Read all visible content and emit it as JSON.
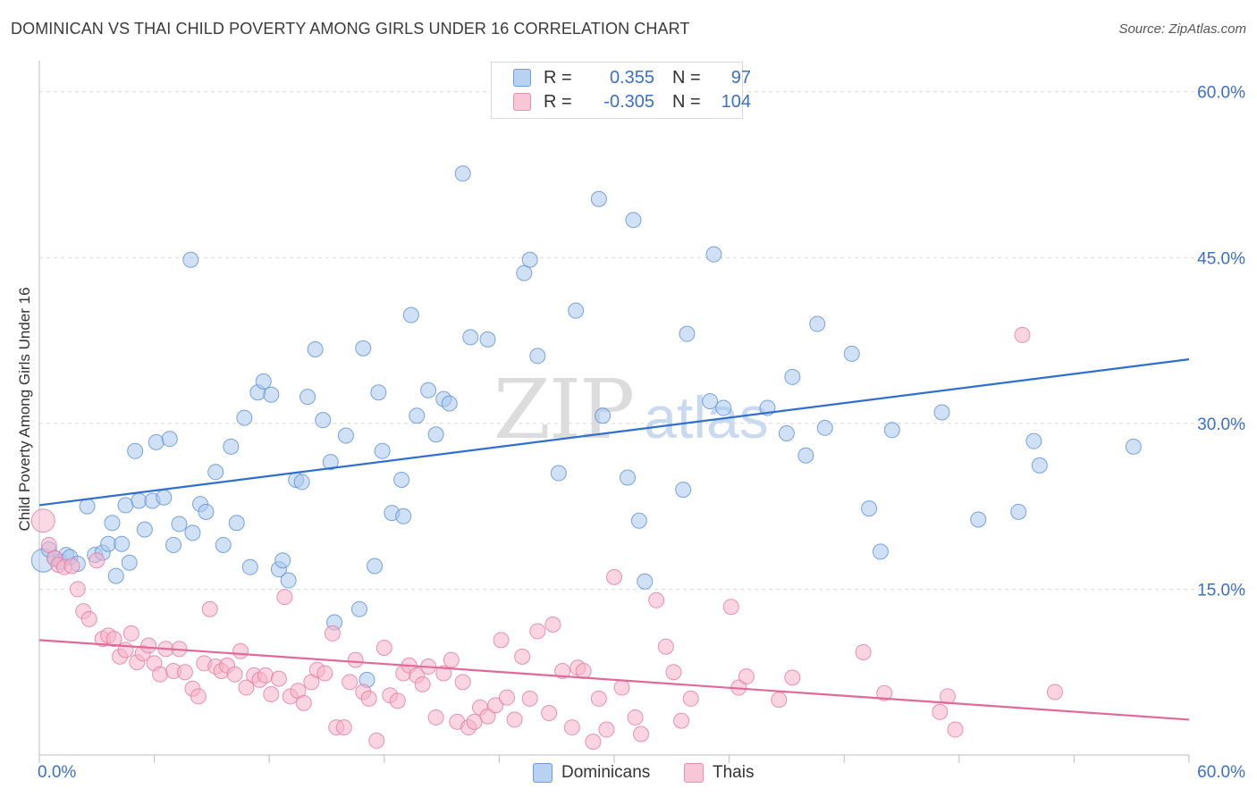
{
  "title": "DOMINICAN VS THAI CHILD POVERTY AMONG GIRLS UNDER 16 CORRELATION CHART",
  "source": "Source: ZipAtlas.com",
  "watermark": {
    "zip": "ZIP",
    "atlas": "atlas"
  },
  "colors": {
    "dominicans_fill": "#a9c8ee",
    "dominicans_stroke": "#5b8fd6",
    "dominicans_line": "#2f6fcf",
    "thais_fill": "#f5b3c9",
    "thais_stroke": "#e27aa0",
    "thais_line": "#e0699a",
    "tick_label": "#3b6fc9",
    "grid": "#d9d9d9"
  },
  "legend": {
    "rows": [
      {
        "r_label": "R =",
        "r_value": "0.355",
        "n_label": "N =",
        "n_value": "97"
      },
      {
        "r_label": "R =",
        "r_value": "-0.305",
        "n_label": "N =",
        "n_value": "104"
      }
    ]
  },
  "chart_data": {
    "type": "scatter",
    "title": "DOMINICAN VS THAI CHILD POVERTY AMONG GIRLS UNDER 16 CORRELATION CHART",
    "xlabel": "",
    "ylabel": "Child Poverty Among Girls Under 16",
    "xlim": [
      0,
      60
    ],
    "ylim": [
      0,
      62
    ],
    "x_tick_labels": [
      "0.0%",
      "60.0%"
    ],
    "y_ticks": [
      15,
      30,
      45,
      60
    ],
    "y_tick_labels": [
      "15.0%",
      "30.0%",
      "45.0%",
      "60.0%"
    ],
    "grid": true,
    "legend_placement": "top-center",
    "series": [
      {
        "name": "Dominicans",
        "r": 0.355,
        "n": 97,
        "trend": {
          "x": [
            0,
            60
          ],
          "y": [
            22.6,
            35.8
          ]
        },
        "points": [
          [
            0.2,
            17.6
          ],
          [
            0.5,
            18.6
          ],
          [
            0.8,
            17.8
          ],
          [
            1.1,
            17.5
          ],
          [
            1.4,
            18.1
          ],
          [
            1.6,
            17.9
          ],
          [
            2.0,
            17.3
          ],
          [
            2.5,
            22.5
          ],
          [
            2.9,
            18.1
          ],
          [
            3.3,
            18.3
          ],
          [
            3.6,
            19.1
          ],
          [
            3.8,
            21.0
          ],
          [
            4.0,
            16.2
          ],
          [
            4.3,
            19.1
          ],
          [
            4.5,
            22.6
          ],
          [
            4.7,
            17.4
          ],
          [
            5.0,
            27.5
          ],
          [
            5.2,
            23.0
          ],
          [
            5.5,
            20.4
          ],
          [
            5.9,
            23.0
          ],
          [
            6.1,
            28.3
          ],
          [
            6.5,
            23.3
          ],
          [
            6.8,
            28.6
          ],
          [
            7.0,
            19.0
          ],
          [
            7.3,
            20.9
          ],
          [
            7.9,
            44.8
          ],
          [
            8.0,
            20.1
          ],
          [
            8.4,
            22.7
          ],
          [
            8.7,
            22.0
          ],
          [
            9.2,
            25.6
          ],
          [
            9.6,
            19.0
          ],
          [
            10.0,
            27.9
          ],
          [
            10.3,
            21.0
          ],
          [
            10.7,
            30.5
          ],
          [
            11.0,
            17.0
          ],
          [
            11.4,
            32.8
          ],
          [
            11.7,
            33.8
          ],
          [
            12.1,
            32.6
          ],
          [
            12.5,
            16.8
          ],
          [
            12.7,
            17.6
          ],
          [
            13.0,
            15.8
          ],
          [
            13.4,
            24.9
          ],
          [
            13.7,
            24.7
          ],
          [
            14.0,
            32.4
          ],
          [
            14.4,
            36.7
          ],
          [
            14.8,
            30.3
          ],
          [
            15.2,
            26.5
          ],
          [
            15.4,
            12.0
          ],
          [
            16.0,
            28.9
          ],
          [
            16.7,
            13.2
          ],
          [
            16.9,
            36.8
          ],
          [
            17.1,
            6.8
          ],
          [
            17.5,
            17.1
          ],
          [
            17.7,
            32.8
          ],
          [
            17.9,
            27.5
          ],
          [
            18.4,
            21.9
          ],
          [
            18.9,
            24.9
          ],
          [
            19.0,
            21.6
          ],
          [
            19.4,
            39.8
          ],
          [
            19.7,
            30.7
          ],
          [
            20.3,
            33.0
          ],
          [
            20.7,
            29.0
          ],
          [
            21.1,
            32.2
          ],
          [
            21.4,
            31.8
          ],
          [
            22.1,
            52.6
          ],
          [
            22.5,
            37.8
          ],
          [
            23.4,
            37.6
          ],
          [
            25.3,
            43.6
          ],
          [
            25.6,
            44.8
          ],
          [
            26.0,
            36.1
          ],
          [
            27.1,
            25.5
          ],
          [
            28.0,
            40.2
          ],
          [
            29.2,
            50.3
          ],
          [
            29.4,
            30.7
          ],
          [
            30.7,
            25.1
          ],
          [
            31.0,
            48.4
          ],
          [
            31.3,
            21.2
          ],
          [
            31.6,
            15.7
          ],
          [
            33.6,
            24.0
          ],
          [
            33.8,
            38.1
          ],
          [
            35.0,
            32.0
          ],
          [
            35.2,
            45.3
          ],
          [
            35.7,
            31.4
          ],
          [
            38.0,
            31.4
          ],
          [
            39.0,
            29.1
          ],
          [
            39.3,
            34.2
          ],
          [
            40.0,
            27.1
          ],
          [
            40.6,
            39.0
          ],
          [
            41.0,
            29.6
          ],
          [
            42.4,
            36.3
          ],
          [
            43.3,
            22.3
          ],
          [
            43.9,
            18.4
          ],
          [
            44.5,
            29.4
          ],
          [
            47.1,
            31.0
          ],
          [
            49.0,
            21.3
          ],
          [
            51.1,
            22.0
          ],
          [
            51.9,
            28.4
          ],
          [
            52.2,
            26.2
          ],
          [
            57.1,
            27.9
          ]
        ]
      },
      {
        "name": "Thais",
        "r": -0.305,
        "n": 104,
        "trend": {
          "x": [
            0,
            60
          ],
          "y": [
            10.4,
            3.2
          ]
        },
        "points": [
          [
            0.2,
            21.2
          ],
          [
            0.5,
            19.0
          ],
          [
            0.8,
            17.8
          ],
          [
            1.0,
            17.2
          ],
          [
            1.3,
            17.0
          ],
          [
            1.7,
            17.1
          ],
          [
            2.0,
            15.0
          ],
          [
            2.3,
            13.0
          ],
          [
            2.6,
            12.3
          ],
          [
            3.0,
            17.6
          ],
          [
            3.3,
            10.5
          ],
          [
            3.6,
            10.8
          ],
          [
            3.9,
            10.5
          ],
          [
            4.2,
            8.9
          ],
          [
            4.5,
            9.5
          ],
          [
            4.8,
            11.0
          ],
          [
            5.1,
            8.4
          ],
          [
            5.4,
            9.2
          ],
          [
            5.7,
            9.9
          ],
          [
            6.0,
            8.3
          ],
          [
            6.3,
            7.3
          ],
          [
            6.6,
            9.6
          ],
          [
            7.0,
            7.6
          ],
          [
            7.3,
            9.6
          ],
          [
            7.6,
            7.5
          ],
          [
            8.0,
            6.0
          ],
          [
            8.3,
            5.3
          ],
          [
            8.6,
            8.3
          ],
          [
            8.9,
            13.2
          ],
          [
            9.2,
            8.0
          ],
          [
            9.5,
            7.6
          ],
          [
            9.8,
            8.1
          ],
          [
            10.2,
            7.3
          ],
          [
            10.5,
            9.4
          ],
          [
            10.8,
            6.1
          ],
          [
            11.2,
            7.2
          ],
          [
            11.5,
            6.8
          ],
          [
            11.8,
            7.2
          ],
          [
            12.1,
            5.5
          ],
          [
            12.5,
            6.9
          ],
          [
            12.8,
            14.3
          ],
          [
            13.1,
            5.3
          ],
          [
            13.5,
            5.8
          ],
          [
            13.8,
            4.7
          ],
          [
            14.2,
            6.6
          ],
          [
            14.5,
            7.7
          ],
          [
            14.9,
            7.4
          ],
          [
            15.3,
            11.0
          ],
          [
            15.5,
            2.5
          ],
          [
            15.9,
            2.5
          ],
          [
            16.2,
            6.6
          ],
          [
            16.5,
            8.6
          ],
          [
            16.9,
            5.7
          ],
          [
            17.2,
            5.1
          ],
          [
            17.6,
            1.3
          ],
          [
            18.0,
            9.7
          ],
          [
            18.3,
            5.4
          ],
          [
            18.7,
            4.9
          ],
          [
            19.0,
            7.4
          ],
          [
            19.3,
            8.1
          ],
          [
            19.7,
            7.2
          ],
          [
            20.0,
            6.4
          ],
          [
            20.3,
            8.0
          ],
          [
            20.7,
            3.4
          ],
          [
            21.1,
            7.4
          ],
          [
            21.5,
            8.6
          ],
          [
            21.8,
            3.0
          ],
          [
            22.1,
            6.6
          ],
          [
            22.4,
            2.5
          ],
          [
            22.7,
            3.0
          ],
          [
            23.0,
            4.3
          ],
          [
            23.4,
            3.5
          ],
          [
            23.8,
            4.5
          ],
          [
            24.1,
            10.4
          ],
          [
            24.4,
            5.2
          ],
          [
            24.8,
            3.2
          ],
          [
            25.2,
            8.9
          ],
          [
            25.6,
            5.1
          ],
          [
            26.0,
            11.2
          ],
          [
            26.6,
            3.8
          ],
          [
            26.8,
            11.8
          ],
          [
            27.3,
            7.6
          ],
          [
            27.8,
            2.5
          ],
          [
            28.1,
            7.9
          ],
          [
            28.4,
            7.6
          ],
          [
            28.9,
            1.2
          ],
          [
            29.2,
            5.1
          ],
          [
            29.6,
            2.3
          ],
          [
            30.0,
            16.1
          ],
          [
            30.4,
            6.1
          ],
          [
            31.1,
            3.4
          ],
          [
            31.4,
            1.9
          ],
          [
            32.2,
            14.0
          ],
          [
            32.7,
            9.8
          ],
          [
            33.1,
            7.5
          ],
          [
            33.5,
            3.1
          ],
          [
            34.0,
            5.1
          ],
          [
            36.1,
            13.4
          ],
          [
            36.5,
            6.1
          ],
          [
            36.9,
            7.1
          ],
          [
            38.6,
            5.0
          ],
          [
            39.3,
            7.0
          ],
          [
            43.0,
            9.3
          ],
          [
            44.1,
            5.6
          ],
          [
            47.0,
            3.9
          ],
          [
            47.4,
            5.3
          ],
          [
            47.8,
            2.3
          ],
          [
            51.3,
            38.0
          ],
          [
            53.0,
            5.7
          ]
        ]
      }
    ]
  },
  "bottom_legend": [
    {
      "label": "Dominicans"
    },
    {
      "label": "Thais"
    }
  ]
}
